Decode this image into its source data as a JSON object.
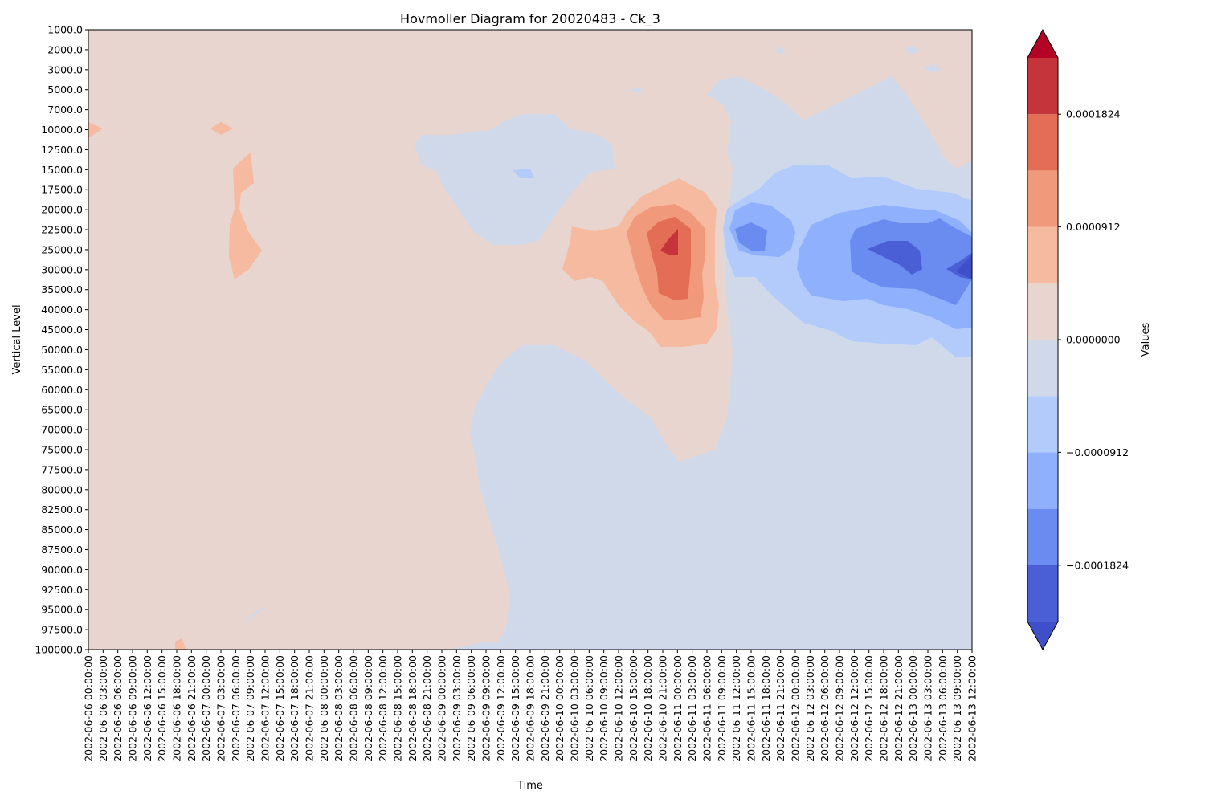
{
  "chart_data": {
    "type": "heatmap",
    "title": "Hovmoller Diagram for 20020483 - Ck_3",
    "xlabel": "Time",
    "ylabel": "Vertical Level",
    "y_ticks": [
      "1000.0",
      "2000.0",
      "3000.0",
      "5000.0",
      "7000.0",
      "10000.0",
      "12500.0",
      "15000.0",
      "17500.0",
      "20000.0",
      "22500.0",
      "25000.0",
      "30000.0",
      "35000.0",
      "40000.0",
      "45000.0",
      "50000.0",
      "55000.0",
      "60000.0",
      "65000.0",
      "70000.0",
      "75000.0",
      "77500.0",
      "80000.0",
      "82500.0",
      "85000.0",
      "87500.0",
      "90000.0",
      "92500.0",
      "95000.0",
      "97500.0",
      "100000.0"
    ],
    "x_ticks": [
      "2002-06-06 00:00:00",
      "2002-06-06 03:00:00",
      "2002-06-06 06:00:00",
      "2002-06-06 09:00:00",
      "2002-06-06 12:00:00",
      "2002-06-06 15:00:00",
      "2002-06-06 18:00:00",
      "2002-06-06 21:00:00",
      "2002-06-07 00:00:00",
      "2002-06-07 03:00:00",
      "2002-06-07 06:00:00",
      "2002-06-07 09:00:00",
      "2002-06-07 12:00:00",
      "2002-06-07 15:00:00",
      "2002-06-07 18:00:00",
      "2002-06-07 21:00:00",
      "2002-06-08 00:00:00",
      "2002-06-08 03:00:00",
      "2002-06-08 06:00:00",
      "2002-06-08 09:00:00",
      "2002-06-08 12:00:00",
      "2002-06-08 15:00:00",
      "2002-06-08 18:00:00",
      "2002-06-08 21:00:00",
      "2002-06-09 00:00:00",
      "2002-06-09 03:00:00",
      "2002-06-09 06:00:00",
      "2002-06-09 09:00:00",
      "2002-06-09 12:00:00",
      "2002-06-09 15:00:00",
      "2002-06-09 18:00:00",
      "2002-06-09 21:00:00",
      "2002-06-10 00:00:00",
      "2002-06-10 03:00:00",
      "2002-06-10 06:00:00",
      "2002-06-10 09:00:00",
      "2002-06-10 12:00:00",
      "2002-06-10 15:00:00",
      "2002-06-10 18:00:00",
      "2002-06-10 21:00:00",
      "2002-06-11 00:00:00",
      "2002-06-11 03:00:00",
      "2002-06-11 06:00:00",
      "2002-06-11 09:00:00",
      "2002-06-11 12:00:00",
      "2002-06-11 15:00:00",
      "2002-06-11 18:00:00",
      "2002-06-11 21:00:00",
      "2002-06-12 00:00:00",
      "2002-06-12 03:00:00",
      "2002-06-12 06:00:00",
      "2002-06-12 09:00:00",
      "2002-06-12 12:00:00",
      "2002-06-12 15:00:00",
      "2002-06-12 18:00:00",
      "2002-06-12 21:00:00",
      "2002-06-13 00:00:00",
      "2002-06-13 03:00:00",
      "2002-06-13 06:00:00",
      "2002-06-13 09:00:00",
      "2002-06-13 12:00:00"
    ],
    "y_inverted": true,
    "colorbar": {
      "label": "Values",
      "ticks": [
        "0.0001824",
        "0.0000912",
        "0.0000000",
        "−0.0000912",
        "−0.0001824"
      ],
      "tick_values": [
        0.0001824,
        9.12e-05,
        0.0,
        -9.12e-05,
        -0.0001824
      ],
      "levels": [
        -0.000228,
        -0.0001824,
        -0.0001368,
        -9.12e-05,
        -4.56e-05,
        0.0,
        4.56e-05,
        9.12e-05,
        0.0001368,
        0.0001824,
        0.000228
      ],
      "colors": [
        "#4a5fd6",
        "#6a8bef",
        "#8fb1fd",
        "#b2cbfb",
        "#cfd9ea",
        "#e8d5cf",
        "#f5baa0",
        "#f19a7b",
        "#e36e55",
        "#c5343a"
      ],
      "under_color": "#3e4fc9",
      "over_color": "#b40426",
      "extend": "both"
    },
    "base_field": {
      "upper_value_class": "0 to 0.0000456",
      "lower_value_class": "-0.0000456 to 0"
    },
    "features": [
      {
        "type": "positive maximum",
        "time": "2002-06-11 00:00:00",
        "level": 25000.0,
        "value_class": "above 0.0001824"
      },
      {
        "type": "negative minimum",
        "time": "2002-06-12 21:00:00",
        "level": 25000.0,
        "value_class": "-0.0002280 to -0.0001824"
      },
      {
        "type": "negative minimum",
        "time": "2002-06-11 18:00:00",
        "level": 22500.0,
        "value_class": "-0.0001368 to -0.0000912"
      }
    ]
  }
}
